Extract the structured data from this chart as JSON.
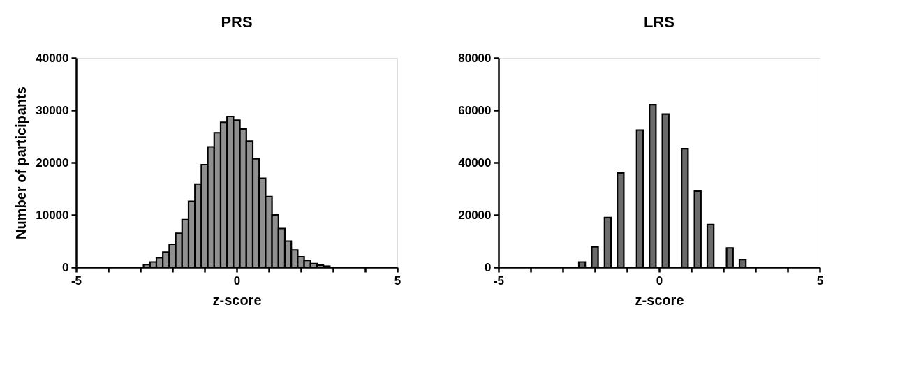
{
  "chart_data": [
    {
      "type": "histogram",
      "title": "PRS",
      "xlabel": "z-score",
      "ylabel": "Number of participants",
      "color": "#909090",
      "bins": [
        -2.9,
        -2.7,
        -2.5,
        -2.3,
        -2.1,
        -1.9,
        -1.7,
        -1.5,
        -1.3,
        -1.1,
        -0.9,
        -0.7,
        -0.5,
        -0.3,
        -0.1,
        0.1,
        0.3,
        0.5,
        0.7,
        0.9,
        1.1,
        1.3,
        1.5,
        1.7,
        1.9,
        2.1,
        2.3,
        2.5,
        2.7,
        2.9
      ],
      "values": [
        500,
        1000,
        1800,
        2900,
        4400,
        6500,
        9100,
        12600,
        15900,
        19600,
        23000,
        25700,
        27700,
        28800,
        28100,
        26400,
        24100,
        20700,
        17000,
        13500,
        10000,
        7400,
        5000,
        3300,
        2000,
        1300,
        700,
        400,
        200
      ],
      "xlim": [
        -5,
        5
      ],
      "xticks": [
        -5,
        {
          "value": -4,
          "label": null
        },
        {
          "value": -3,
          "label": null
        },
        {
          "value": -2,
          "label": null
        },
        {
          "value": -1,
          "label": null
        },
        0,
        {
          "value": 1,
          "label": null
        },
        {
          "value": 2,
          "label": null
        },
        {
          "value": 3,
          "label": null
        },
        {
          "value": 4,
          "label": null
        },
        5
      ],
      "ylim": [
        0,
        40000
      ],
      "yticks": [
        0,
        10000,
        20000,
        30000,
        40000
      ]
    },
    {
      "type": "histogram",
      "title": "LRS",
      "xlabel": "z-score",
      "color": "#6b6b6b",
      "bins": [
        -2.5,
        -2.3,
        -2.1,
        -1.9,
        -1.7,
        -1.5,
        -1.3,
        -1.1,
        -0.7,
        -0.5,
        -0.3,
        -0.1,
        0.1,
        0.3,
        0.7,
        0.9,
        1.1,
        1.3,
        1.5,
        1.7,
        2.1,
        2.3,
        2.5,
        2.7
      ],
      "values": [
        2000,
        0,
        7800,
        0,
        19000,
        0,
        36000,
        0,
        52400,
        0,
        62100,
        0,
        58500,
        0,
        45300,
        0,
        29100,
        0,
        16300,
        0,
        7400,
        0,
        2900
      ],
      "xlim": [
        -5,
        5
      ],
      "xticks": [
        -5,
        {
          "value": -4,
          "label": null
        },
        {
          "value": -3,
          "label": null
        },
        {
          "value": -2,
          "label": null
        },
        {
          "value": -1,
          "label": null
        },
        0,
        {
          "value": 1,
          "label": null
        },
        {
          "value": 2,
          "label": null
        },
        {
          "value": 3,
          "label": null
        },
        {
          "value": 4,
          "label": null
        },
        5
      ],
      "ylim": [
        0,
        80000
      ],
      "yticks": [
        0,
        20000,
        40000,
        60000,
        80000
      ]
    }
  ]
}
